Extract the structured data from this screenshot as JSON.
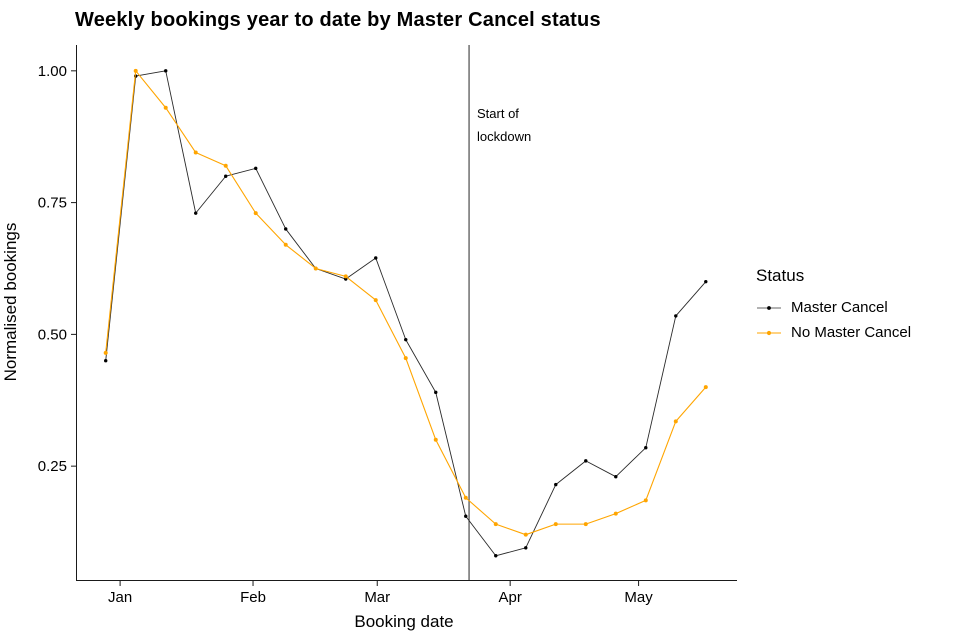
{
  "chart_data": {
    "type": "line",
    "title": "Weekly bookings year to date by Master Cancel status",
    "xlabel": "Booking date",
    "ylabel": "Normalised bookings",
    "x_unit": "week index from first plotted week",
    "x": [
      0,
      1,
      2,
      3,
      4,
      5,
      6,
      7,
      8,
      9,
      10,
      11,
      12,
      13,
      14,
      15,
      16,
      17,
      18,
      19,
      20
    ],
    "series": [
      {
        "name": "Master Cancel",
        "color": "#2a2a2a",
        "point_color": "#000000",
        "values": [
          0.45,
          0.99,
          1.0,
          0.73,
          0.8,
          0.815,
          0.7,
          0.625,
          0.605,
          0.645,
          0.49,
          0.39,
          0.155,
          0.08,
          0.095,
          0.215,
          0.26,
          0.23,
          0.285,
          0.535,
          0.6
        ]
      },
      {
        "name": "No Master Cancel",
        "color": "#FFA500",
        "point_color": "#FFA500",
        "values": [
          0.465,
          1.0,
          0.93,
          0.845,
          0.82,
          0.73,
          0.67,
          0.625,
          0.61,
          0.565,
          0.455,
          0.3,
          0.19,
          0.14,
          0.12,
          0.14,
          0.14,
          0.16,
          0.185,
          0.335,
          0.4
        ]
      }
    ],
    "x_ticks": [
      {
        "label": "Jan",
        "x": 0.48
      },
      {
        "label": "Feb",
        "x": 4.91
      },
      {
        "label": "Mar",
        "x": 9.05
      },
      {
        "label": "Apr",
        "x": 13.48
      },
      {
        "label": "May",
        "x": 17.76
      }
    ],
    "y_ticks": [
      {
        "label": "0.25",
        "v": 0.25
      },
      {
        "label": "0.50",
        "v": 0.5
      },
      {
        "label": "0.75",
        "v": 0.75
      },
      {
        "label": "1.00",
        "v": 1.0
      }
    ],
    "xlim": [
      -0.99,
      21.04
    ],
    "ylim": [
      0.034,
      1.049
    ],
    "grid": false,
    "legend": {
      "title": "Status",
      "position": "right"
    },
    "vline": {
      "x": 12.11,
      "color": "#4a4a4a"
    },
    "annotation": {
      "line1": "Start of",
      "line2": "lockdown"
    },
    "axis_color": "#1a1a1a",
    "tick_label_color": "#000000"
  }
}
